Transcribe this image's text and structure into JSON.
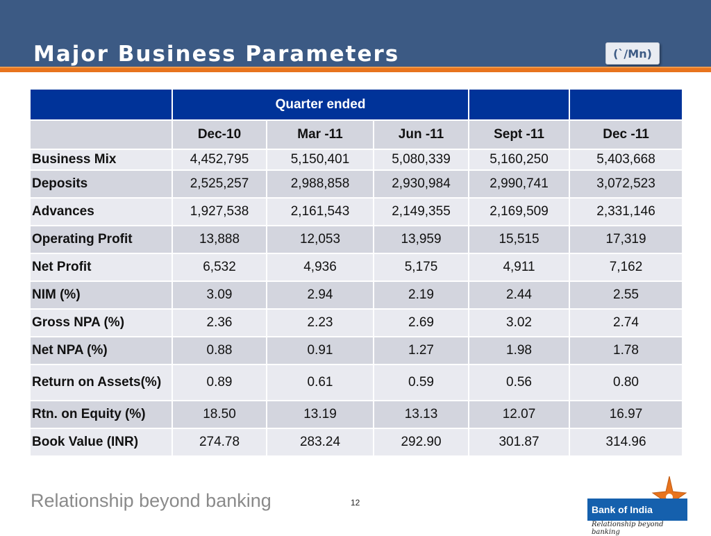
{
  "slide": {
    "title": "Major Business Parameters",
    "unit": "(`/Mn)",
    "footer": "Relationship beyond banking",
    "page_number": "12"
  },
  "logo": {
    "name": "Bank of India",
    "tagline": "Relationship beyond banking",
    "colors": {
      "blue": "#1560ad",
      "orange": "#e8741e"
    }
  },
  "table": {
    "group_header": "Quarter ended",
    "columns": [
      "Dec-10",
      "Mar -11",
      "Jun -11",
      "Sept -11",
      "Dec -11"
    ],
    "rows": [
      {
        "label": "Business Mix",
        "values": [
          "4,452,795",
          "5,150,401",
          "5,080,339",
          "5,160,250",
          "5,403,668"
        ]
      },
      {
        "label": "Deposits",
        "values": [
          "2,525,257",
          "2,988,858",
          "2,930,984",
          "2,990,741",
          "3,072,523"
        ]
      },
      {
        "label": "Advances",
        "values": [
          "1,927,538",
          "2,161,543",
          "2,149,355",
          "2,169,509",
          "2,331,146"
        ]
      },
      {
        "label": "Operating Profit",
        "values": [
          "13,888",
          "12,053",
          "13,959",
          "15,515",
          "17,319"
        ]
      },
      {
        "label": "Net Profit",
        "values": [
          "6,532",
          "4,936",
          "5,175",
          "4,911",
          "7,162"
        ]
      },
      {
        "label": "NIM (%)",
        "values": [
          "3.09",
          "2.94",
          "2.19",
          "2.44",
          "2.55"
        ]
      },
      {
        "label": "Gross NPA (%)",
        "values": [
          "2.36",
          "2.23",
          "2.69",
          "3.02",
          "2.74"
        ]
      },
      {
        "label": "Net NPA (%)",
        "values": [
          "0.88",
          "0.91",
          "1.27",
          "1.98",
          "1.78"
        ]
      },
      {
        "label": "Return on Assets(%)",
        "values": [
          "0.89",
          "0.61",
          "0.59",
          "0.56",
          "0.80"
        ]
      },
      {
        "label": "Rtn. on Equity (%)",
        "values": [
          "18.50",
          "13.19",
          "13.13",
          "12.07",
          "16.97"
        ]
      },
      {
        "label": "Book Value (INR)",
        "values": [
          "274.78",
          "283.24",
          "292.90",
          "301.87",
          "314.96"
        ]
      }
    ]
  }
}
